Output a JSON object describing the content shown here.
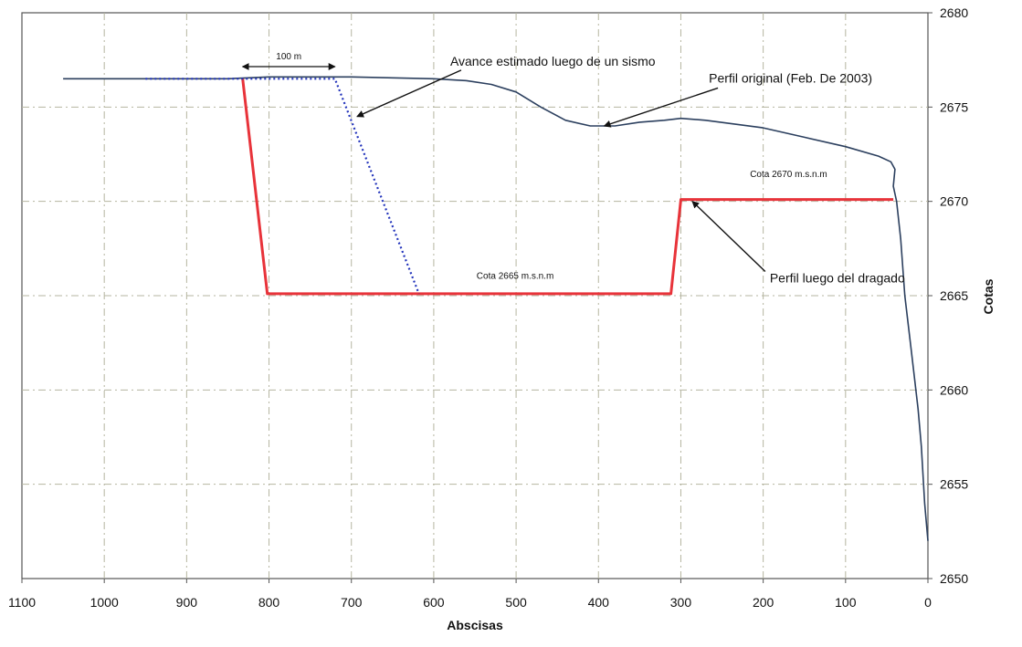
{
  "chart_data": {
    "type": "line",
    "xlabel": "Abscisas",
    "ylabel": "Cotas",
    "xlim": [
      1100,
      0
    ],
    "ylim": [
      2650,
      2680
    ],
    "x_reversed": true,
    "y_axis_side": "right",
    "grid": true,
    "x_ticks": [
      "1100",
      "1000",
      "900",
      "800",
      "700",
      "600",
      "500",
      "400",
      "300",
      "200",
      "100",
      "0"
    ],
    "y_ticks": [
      "2650",
      "2655",
      "2660",
      "2665",
      "2670",
      "2675",
      "2680"
    ],
    "series": [
      {
        "color": "#2b3f5e",
        "style": "solid",
        "points": [
          [
            1050,
            2676.5
          ],
          [
            950,
            2676.5
          ],
          [
            850,
            2676.5
          ],
          [
            800,
            2676.6
          ],
          [
            700,
            2676.6
          ],
          [
            600,
            2676.5
          ],
          [
            560,
            2676.4
          ],
          [
            530,
            2676.2
          ],
          [
            500,
            2675.8
          ],
          [
            470,
            2675.0
          ],
          [
            440,
            2674.3
          ],
          [
            410,
            2674.0
          ],
          [
            380,
            2674.0
          ],
          [
            350,
            2674.2
          ],
          [
            320,
            2674.3
          ],
          [
            300,
            2674.4
          ],
          [
            270,
            2674.3
          ],
          [
            200,
            2673.9
          ],
          [
            150,
            2673.4
          ],
          [
            100,
            2672.9
          ],
          [
            60,
            2672.4
          ],
          [
            45,
            2672.1
          ],
          [
            40,
            2671.7
          ],
          [
            42,
            2670.8
          ],
          [
            38,
            2670.0
          ],
          [
            33,
            2668.0
          ],
          [
            28,
            2665.0
          ],
          [
            20,
            2662.0
          ],
          [
            12,
            2659.0
          ],
          [
            8,
            2657.0
          ],
          [
            4,
            2654.0
          ],
          [
            0,
            2652.0
          ]
        ]
      },
      {
        "color": "#e8333a",
        "style": "solid",
        "points": [
          [
            832,
            2676.5
          ],
          [
            802,
            2665.1
          ],
          [
            312,
            2665.1
          ],
          [
            300,
            2670.1
          ],
          [
            42,
            2670.1
          ]
        ]
      },
      {
        "color": "#2233bb",
        "style": "dotted",
        "points": [
          [
            950,
            2676.5
          ],
          [
            720,
            2676.5
          ],
          [
            618,
            2665.1
          ]
        ]
      }
    ],
    "annotations": [
      {
        "text": "100 m",
        "type": "dimension",
        "from": [
          832,
          2677.0
        ],
        "to": [
          720,
          2677.0
        ]
      },
      {
        "text": "Avance estimado luego de un sismo",
        "anchor": [
          580,
          2677.2
        ],
        "arrow_to": [
          693,
          2674.5
        ]
      },
      {
        "text": "Perfil original (Feb. De 2003)",
        "anchor": [
          266,
          2676.3
        ],
        "arrow_to": [
          393,
          2674.0
        ]
      },
      {
        "text": "Cota 2670 m.s.n.m",
        "anchor": [
          216,
          2671.3
        ]
      },
      {
        "text": "Cota 2665 m.s.n.m",
        "anchor": [
          548,
          2665.9
        ]
      },
      {
        "text": "Perfil luego del dragado",
        "anchor": [
          192,
          2665.7
        ],
        "arrow_to": [
          286,
          2670.0
        ]
      }
    ]
  }
}
